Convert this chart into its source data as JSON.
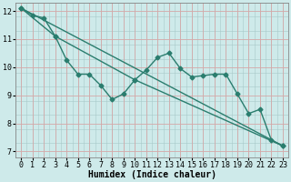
{
  "xlabel": "Humidex (Indice chaleur)",
  "background_color": "#ceeaea",
  "grid_color_major": "#c8b8b8",
  "grid_color_minor": "#b8d4d4",
  "line_color": "#2a7d6e",
  "xlim": [
    -0.5,
    23.5
  ],
  "ylim": [
    6.8,
    12.3
  ],
  "xticks": [
    0,
    1,
    2,
    3,
    4,
    5,
    6,
    7,
    8,
    9,
    10,
    11,
    12,
    13,
    14,
    15,
    16,
    17,
    18,
    19,
    20,
    21,
    22,
    23
  ],
  "yticks": [
    7,
    8,
    9,
    10,
    11,
    12
  ],
  "line1_x": [
    0,
    1,
    2,
    3,
    4,
    5,
    6,
    7,
    8,
    9,
    10,
    11,
    12,
    13,
    14,
    15,
    16,
    17,
    18,
    19,
    20,
    21,
    22,
    23
  ],
  "line1_y": [
    12.1,
    11.85,
    11.75,
    11.1,
    10.25,
    9.75,
    9.75,
    9.35,
    8.85,
    9.05,
    9.55,
    9.9,
    10.35,
    10.5,
    9.95,
    9.65,
    9.7,
    9.75,
    9.75,
    9.05,
    8.35,
    8.5,
    7.4,
    7.2
  ],
  "line2_x": [
    0,
    3,
    10,
    23
  ],
  "line2_y": [
    12.1,
    11.1,
    9.55,
    7.2
  ],
  "line3_x": [
    0,
    23
  ],
  "line3_y": [
    12.1,
    7.2
  ],
  "marker": "D",
  "markersize": 2.5,
  "linewidth": 1.0,
  "xlabel_fontsize": 7,
  "tick_fontsize": 6
}
